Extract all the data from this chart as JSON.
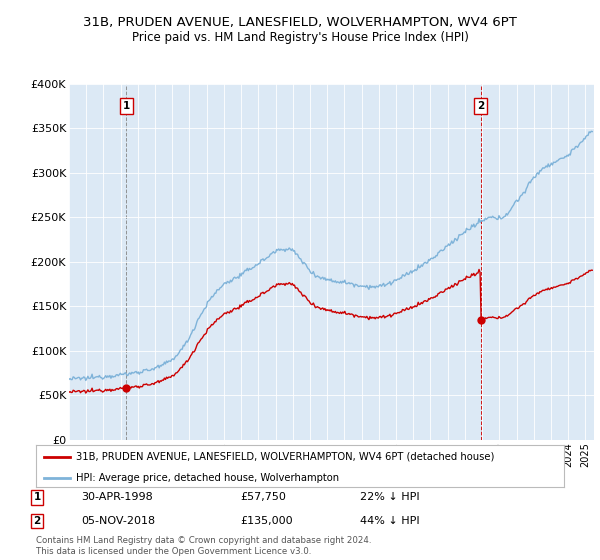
{
  "title": "31B, PRUDEN AVENUE, LANESFIELD, WOLVERHAMPTON, WV4 6PT",
  "subtitle": "Price paid vs. HM Land Registry's House Price Index (HPI)",
  "legend_house": "31B, PRUDEN AVENUE, LANESFIELD, WOLVERHAMPTON, WV4 6PT (detached house)",
  "legend_hpi": "HPI: Average price, detached house, Wolverhampton",
  "footnote": "Contains HM Land Registry data © Crown copyright and database right 2024.\nThis data is licensed under the Open Government Licence v3.0.",
  "annotation1_date": "30-APR-1998",
  "annotation1_price": "£57,750",
  "annotation1_hpi": "22% ↓ HPI",
  "annotation2_date": "05-NOV-2018",
  "annotation2_price": "£135,000",
  "annotation2_hpi": "44% ↓ HPI",
  "house_color": "#cc0000",
  "hpi_color": "#7fb3d9",
  "bg_color": "#ffffff",
  "plot_bg_color": "#dce9f5",
  "grid_color": "#ffffff",
  "ylim": [
    0,
    400000
  ],
  "xlim_start": 1995.0,
  "xlim_end": 2025.5,
  "sale1_x": 1998.33,
  "sale1_y": 57750,
  "sale2_x": 2018.92,
  "sale2_y": 135000,
  "hpi_anchors_t": [
    1995.0,
    1995.5,
    1996.0,
    1996.5,
    1997.0,
    1997.5,
    1998.0,
    1998.5,
    1999.0,
    1999.5,
    2000.0,
    2000.5,
    2001.0,
    2001.5,
    2002.0,
    2002.5,
    2003.0,
    2003.5,
    2004.0,
    2004.5,
    2005.0,
    2005.5,
    2006.0,
    2006.5,
    2007.0,
    2007.5,
    2008.0,
    2008.5,
    2009.0,
    2009.5,
    2010.0,
    2010.5,
    2011.0,
    2011.5,
    2012.0,
    2012.5,
    2013.0,
    2013.5,
    2014.0,
    2014.5,
    2015.0,
    2015.5,
    2016.0,
    2016.5,
    2017.0,
    2017.5,
    2018.0,
    2018.5,
    2019.0,
    2019.5,
    2020.0,
    2020.5,
    2021.0,
    2021.5,
    2022.0,
    2022.5,
    2023.0,
    2023.5,
    2024.0,
    2024.5,
    2025.3
  ],
  "hpi_anchors_v": [
    68000,
    68500,
    69000,
    70000,
    71000,
    72000,
    73000,
    74000,
    76000,
    78000,
    80000,
    84000,
    90000,
    100000,
    115000,
    135000,
    152000,
    165000,
    175000,
    180000,
    185000,
    192000,
    198000,
    205000,
    212000,
    215000,
    213000,
    202000,
    190000,
    183000,
    180000,
    178000,
    177000,
    175000,
    173000,
    172000,
    172000,
    175000,
    179000,
    184000,
    190000,
    196000,
    202000,
    210000,
    218000,
    226000,
    234000,
    240000,
    246000,
    250000,
    248000,
    255000,
    268000,
    280000,
    295000,
    305000,
    310000,
    315000,
    320000,
    330000,
    345000
  ]
}
